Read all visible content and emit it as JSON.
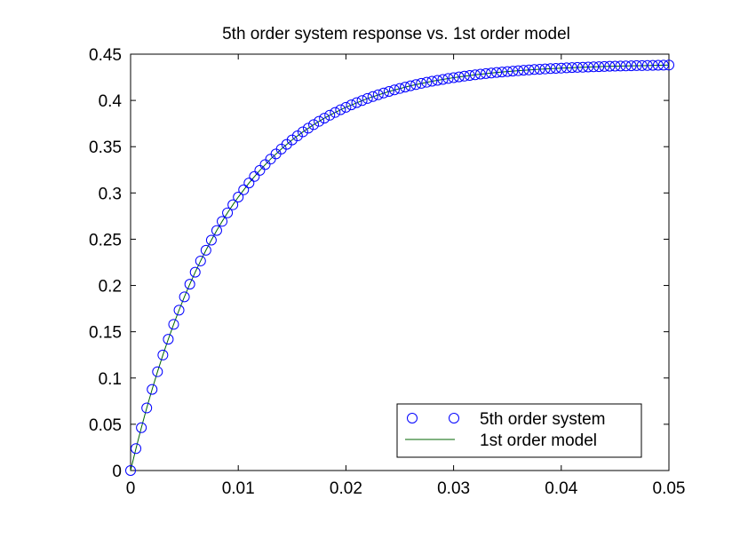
{
  "chart_data": {
    "type": "scatter",
    "title": "5th order system response vs. 1st order model",
    "xlabel": "",
    "ylabel": "",
    "xlim": [
      0,
      0.05
    ],
    "ylim": [
      0,
      0.45
    ],
    "x_ticks": [
      {
        "value": 0,
        "label": "0"
      },
      {
        "value": 0.01,
        "label": "0.01"
      },
      {
        "value": 0.02,
        "label": "0.02"
      },
      {
        "value": 0.03,
        "label": "0.03"
      },
      {
        "value": 0.04,
        "label": "0.04"
      },
      {
        "value": 0.05,
        "label": "0.05"
      }
    ],
    "y_ticks": [
      {
        "value": 0,
        "label": "0"
      },
      {
        "value": 0.05,
        "label": "0.05"
      },
      {
        "value": 0.1,
        "label": "0.1"
      },
      {
        "value": 0.15,
        "label": "0.15"
      },
      {
        "value": 0.2,
        "label": "0.2"
      },
      {
        "value": 0.25,
        "label": "0.25"
      },
      {
        "value": 0.3,
        "label": "0.3"
      },
      {
        "value": 0.35,
        "label": "0.35"
      },
      {
        "value": 0.4,
        "label": "0.4"
      },
      {
        "value": 0.45,
        "label": "0.45"
      }
    ],
    "grid": false,
    "legend_position": "bottom-right",
    "series": [
      {
        "name": "5th order system",
        "style": "markers-circle",
        "color": "#0000ff",
        "x": [
          0.0,
          0.0005,
          0.001,
          0.0015,
          0.002,
          0.0025,
          0.003,
          0.0035,
          0.004,
          0.0045,
          0.005,
          0.0055,
          0.006,
          0.0065,
          0.007,
          0.0075,
          0.008,
          0.0085,
          0.009,
          0.0095,
          0.01,
          0.0105,
          0.011,
          0.0115,
          0.012,
          0.0125,
          0.013,
          0.0135,
          0.014,
          0.0145,
          0.015,
          0.0155,
          0.016,
          0.0165,
          0.017,
          0.0175,
          0.018,
          0.0185,
          0.019,
          0.0195,
          0.02,
          0.0205,
          0.021,
          0.0215,
          0.022,
          0.0225,
          0.023,
          0.0235,
          0.024,
          0.0245,
          0.025,
          0.0255,
          0.026,
          0.0265,
          0.027,
          0.0275,
          0.028,
          0.0285,
          0.029,
          0.0295,
          0.03,
          0.0305,
          0.031,
          0.0315,
          0.032,
          0.0325,
          0.033,
          0.0335,
          0.034,
          0.0345,
          0.035,
          0.0355,
          0.036,
          0.0365,
          0.037,
          0.0375,
          0.038,
          0.0385,
          0.039,
          0.0395,
          0.04,
          0.0405,
          0.041,
          0.0415,
          0.042,
          0.0425,
          0.043,
          0.0435,
          0.044,
          0.0445,
          0.045,
          0.0455,
          0.046,
          0.0465,
          0.047,
          0.0475,
          0.048,
          0.0485,
          0.049,
          0.0495,
          0.05
        ],
        "y": [
          0.0,
          0.0238,
          0.0463,
          0.0676,
          0.0877,
          0.1068,
          0.1248,
          0.1419,
          0.158,
          0.1733,
          0.1877,
          0.2014,
          0.2143,
          0.2265,
          0.2381,
          0.249,
          0.2594,
          0.2692,
          0.2785,
          0.2872,
          0.2955,
          0.3034,
          0.3108,
          0.3178,
          0.3244,
          0.3307,
          0.3366,
          0.3422,
          0.3475,
          0.3525,
          0.3573,
          0.3617,
          0.366,
          0.37,
          0.3738,
          0.3774,
          0.3808,
          0.384,
          0.387,
          0.3899,
          0.3926,
          0.3952,
          0.3976,
          0.3999,
          0.4021,
          0.4042,
          0.4061,
          0.408,
          0.4097,
          0.4114,
          0.4129,
          0.4144,
          0.4158,
          0.4171,
          0.4184,
          0.4196,
          0.4207,
          0.4217,
          0.4227,
          0.4237,
          0.4246,
          0.4254,
          0.4262,
          0.427,
          0.4277,
          0.4284,
          0.429,
          0.4296,
          0.4302,
          0.4307,
          0.4312,
          0.4317,
          0.4321,
          0.4326,
          0.433,
          0.4334,
          0.4337,
          0.434,
          0.4344,
          0.4347,
          0.4349,
          0.4352,
          0.4355,
          0.4357,
          0.4359,
          0.4361,
          0.4363,
          0.4365,
          0.4367,
          0.4369,
          0.437,
          0.4372,
          0.4373,
          0.4374,
          0.4376,
          0.4377,
          0.4378,
          0.4379,
          0.438,
          0.4381,
          0.4382
        ]
      },
      {
        "name": "1st order model",
        "style": "line",
        "color": "#006400",
        "x": [
          0.0,
          0.0005,
          0.001,
          0.0015,
          0.002,
          0.0025,
          0.003,
          0.0035,
          0.004,
          0.0045,
          0.005,
          0.0055,
          0.006,
          0.0065,
          0.007,
          0.0075,
          0.008,
          0.0085,
          0.009,
          0.0095,
          0.01,
          0.011,
          0.012,
          0.013,
          0.014,
          0.015,
          0.016,
          0.017,
          0.018,
          0.019,
          0.02,
          0.022,
          0.024,
          0.026,
          0.028,
          0.03,
          0.032,
          0.034,
          0.036,
          0.038,
          0.04,
          0.042,
          0.044,
          0.046,
          0.048,
          0.05
        ],
        "y": [
          0.0,
          0.0238,
          0.0463,
          0.0676,
          0.0877,
          0.1068,
          0.1248,
          0.1419,
          0.158,
          0.1733,
          0.1877,
          0.2014,
          0.2143,
          0.2265,
          0.2381,
          0.249,
          0.2594,
          0.2692,
          0.2785,
          0.2872,
          0.2955,
          0.3108,
          0.3244,
          0.3366,
          0.3475,
          0.3573,
          0.366,
          0.3738,
          0.3808,
          0.387,
          0.3926,
          0.4021,
          0.4097,
          0.4158,
          0.4207,
          0.4246,
          0.4277,
          0.4302,
          0.4321,
          0.4337,
          0.4349,
          0.4359,
          0.4367,
          0.4373,
          0.4377,
          0.4382
        ]
      }
    ]
  }
}
